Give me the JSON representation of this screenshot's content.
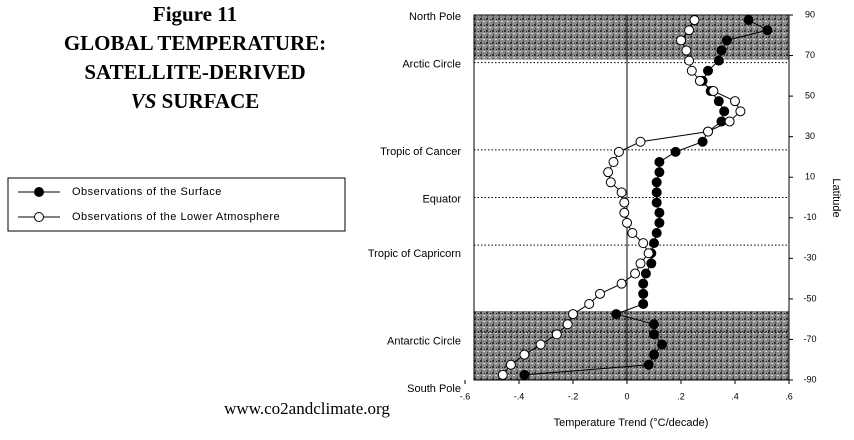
{
  "chart_data": {
    "type": "line",
    "title_lines": [
      "Figure 11",
      "GLOBAL TEMPERATURE:",
      "SATELLITE-DERIVED"
    ],
    "title_last": {
      "italic": "VS",
      "text": " SURFACE"
    },
    "source": "www.co2andclimate.org",
    "x_label": "Temperature Trend (°C/decade)",
    "y_label": "Latitude",
    "y": [
      87.5,
      82.5,
      77.5,
      72.5,
      67.5,
      62.5,
      57.5,
      52.5,
      47.5,
      42.5,
      37.5,
      32.5,
      27.5,
      22.5,
      17.5,
      12.5,
      7.5,
      2.5,
      -2.5,
      -7.5,
      -12.5,
      -17.5,
      -22.5,
      -27.5,
      -32.5,
      -37.5,
      -42.5,
      -47.5,
      -52.5,
      -57.5,
      -62.5,
      -67.5,
      -72.5,
      -77.5,
      -82.5,
      -87.5
    ],
    "series": [
      {
        "name": "Observations of the Surface",
        "color": "#000000",
        "filled": true,
        "values": [
          0.45,
          0.52,
          0.37,
          0.35,
          0.34,
          0.3,
          0.28,
          0.31,
          0.34,
          0.36,
          0.35,
          0.3,
          0.28,
          0.18,
          0.12,
          0.12,
          0.11,
          0.11,
          0.11,
          0.12,
          0.12,
          0.11,
          0.1,
          0.09,
          0.09,
          0.07,
          0.06,
          0.06,
          0.06,
          -0.04,
          0.1,
          0.1,
          0.13,
          0.1,
          0.08,
          -0.38
        ]
      },
      {
        "name": "Observations of the Lower Atmosphere",
        "color": "#000000",
        "filled": false,
        "values": [
          0.25,
          0.23,
          0.2,
          0.22,
          0.23,
          0.24,
          0.27,
          0.32,
          0.4,
          0.42,
          0.38,
          0.3,
          0.05,
          -0.03,
          -0.05,
          -0.07,
          -0.06,
          -0.02,
          -0.01,
          -0.01,
          0.0,
          0.02,
          0.06,
          0.08,
          0.05,
          0.03,
          -0.02,
          -0.1,
          -0.14,
          -0.2,
          -0.22,
          -0.26,
          -0.32,
          -0.38,
          -0.43,
          -0.46
        ]
      }
    ],
    "xlim": [
      -0.6,
      0.6
    ],
    "xticks": [
      {
        "value": -0.6,
        "label": "-.6"
      },
      {
        "value": -0.4,
        "label": "-.4"
      },
      {
        "value": -0.2,
        "label": "-.2"
      },
      0,
      {
        "value": 0.2,
        "label": ".2"
      },
      {
        "value": 0.4,
        "label": ".4"
      },
      {
        "value": 0.6,
        "label": ".6"
      }
    ],
    "ylim": [
      -90,
      90
    ],
    "yticks": [
      90,
      70,
      50,
      30,
      10,
      -10,
      -30,
      -50,
      -70,
      -90
    ],
    "zones": [
      {
        "label": "North Pole",
        "value": 90
      },
      {
        "label": "Arctic Circle",
        "value": 66.5
      },
      {
        "label": "Tropic of Cancer",
        "value": 23.5
      },
      {
        "label": "Equator",
        "value": 0
      },
      {
        "label": "Tropic of Capricorn",
        "value": -23.5
      },
      {
        "label": "Antarctic Circle",
        "value": -66.5
      },
      {
        "label": "South Pole",
        "value": -90
      }
    ],
    "shaded_bands": [
      [
        68,
        90
      ],
      [
        -56,
        -90
      ]
    ]
  }
}
